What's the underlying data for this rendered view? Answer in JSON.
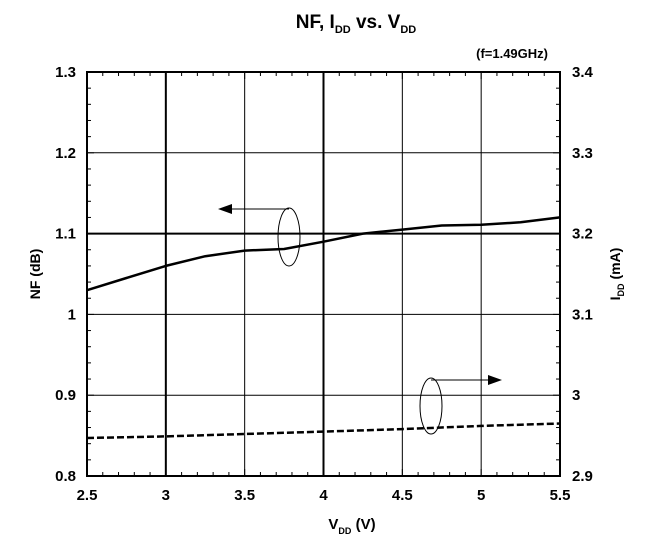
{
  "chart_data": {
    "type": "line",
    "title": {
      "main": "NF, I",
      "sub1": "DD",
      "mid": " vs. V",
      "sub2": "DD",
      "note": "(f=1.49GHz)"
    },
    "xlabel": {
      "main": "V",
      "sub": "DD",
      "unit": " (V)"
    },
    "ylabel_left": "NF (dB)",
    "ylabel_right": {
      "main": "I",
      "sub": "DD",
      "unit": " (mA)"
    },
    "xlim": [
      2.5,
      5.5
    ],
    "ylim_left": [
      0.8,
      1.3
    ],
    "ylim_right": [
      2.9,
      3.4
    ],
    "x_ticks": [
      "2.5",
      "3",
      "3.5",
      "4",
      "4.5",
      "5",
      "5.5"
    ],
    "y_left_ticks": [
      "0.8",
      "0.9",
      "1",
      "1.1",
      "1.2",
      "1.3"
    ],
    "y_right_ticks": [
      "2.9",
      "3",
      "3.1",
      "3.2",
      "3.3",
      "3.4"
    ],
    "grid": true,
    "series": [
      {
        "axis": "left",
        "style": "solid",
        "x": [
          2.5,
          2.75,
          3.0,
          3.25,
          3.5,
          3.75,
          4.0,
          4.25,
          4.5,
          4.75,
          5.0,
          5.25,
          5.5
        ],
        "values": [
          1.03,
          1.045,
          1.06,
          1.072,
          1.079,
          1.081,
          1.09,
          1.1,
          1.105,
          1.11,
          1.111,
          1.114,
          1.12
        ]
      },
      {
        "axis": "right",
        "style": "dashed",
        "x": [
          2.5,
          3.0,
          3.5,
          4.0,
          4.5,
          5.0,
          5.5
        ],
        "values": [
          2.947,
          2.949,
          2.952,
          2.955,
          2.958,
          2.962,
          2.965
        ]
      }
    ]
  }
}
